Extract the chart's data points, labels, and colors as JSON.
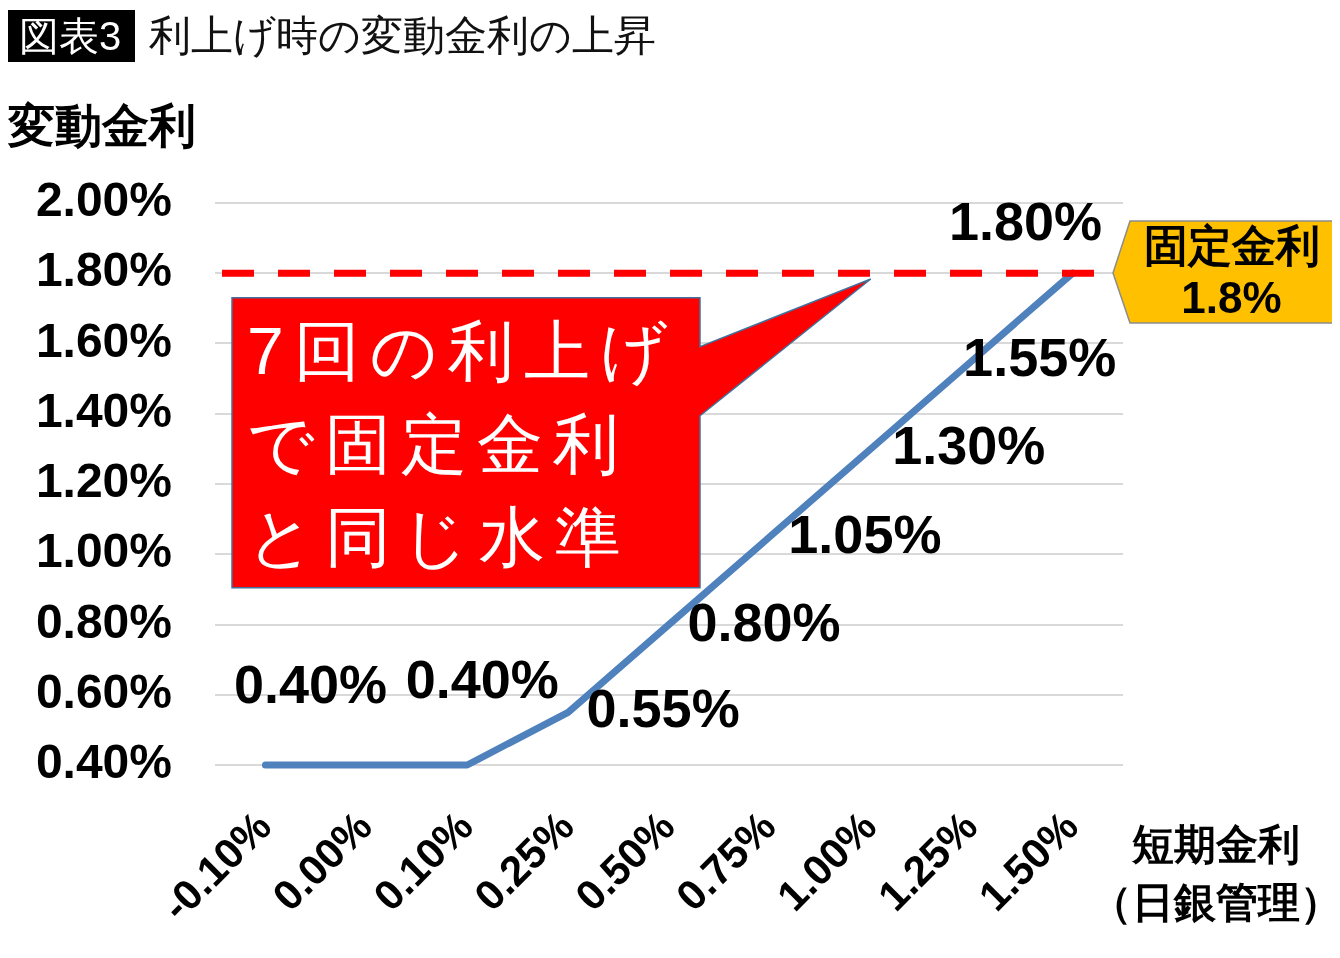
{
  "chart_data": {
    "type": "line",
    "title": "利上げ時の変動金利の上昇",
    "xlabel": "短期金利（日銀管理）",
    "ylabel": "変動金利",
    "annotations": [
      "図表3",
      {
        "text": "7回の利上げで固定金利と同じ水準",
        "x": "1.00%",
        "y": 1.8
      }
    ],
    "categories": [
      "-0.10%",
      "0.00%",
      "0.10%",
      "0.25%",
      "0.50%",
      "0.75%",
      "1.00%",
      "1.25%",
      "1.50%"
    ],
    "values": [
      0.4,
      0.4,
      0.4,
      0.55,
      0.8,
      1.05,
      1.3,
      1.55,
      1.8
    ],
    "value_labels": [
      "0.40%",
      null,
      "0.40%",
      "0.55%",
      "0.80%",
      "1.05%",
      "1.30%",
      "1.55%",
      "1.80%"
    ],
    "color": "#4f81bd",
    "marker": "none",
    "line_style": "solid",
    "ylim": [
      0.4,
      2.0
    ],
    "yticks": [
      {
        "value": 0.4,
        "label": "0.40%"
      },
      {
        "value": 0.6,
        "label": "0.60%"
      },
      {
        "value": 0.8,
        "label": "0.80%"
      },
      {
        "value": 1.0,
        "label": "1.00%"
      },
      {
        "value": 1.2,
        "label": "1.20%"
      },
      {
        "value": 1.4,
        "label": "1.40%"
      },
      {
        "value": 1.6,
        "label": "1.60%"
      },
      {
        "value": 1.8,
        "label": "1.80%"
      },
      {
        "value": 2.0,
        "label": "2.00%"
      }
    ],
    "grid": "y",
    "ref_lines": [
      {
        "axis": "y",
        "value": 1.8,
        "label": "固定金利\n1.8%",
        "color": "#ff0000",
        "line_style": "dashed"
      }
    ]
  }
}
